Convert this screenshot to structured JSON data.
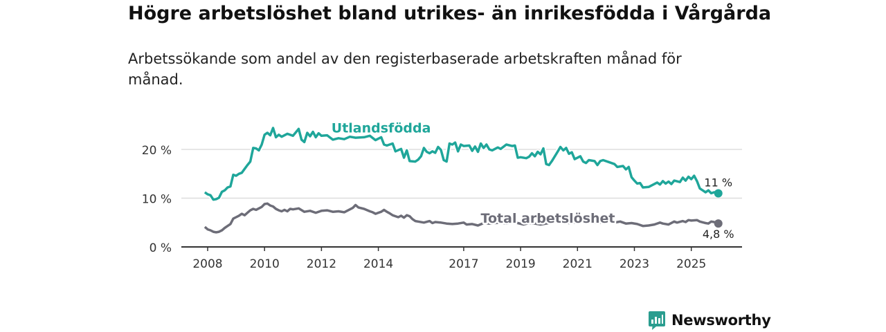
{
  "title": "Högre arbetslöshet bland utrikes- än inrikesfödda i Vårgårda",
  "subtitle": "Arbetssökande som andel av den registerbaserade arbetskraften månad för månad.",
  "brand": {
    "name": "Newsworthy",
    "icon": "bar-chart-speech-bubble-icon",
    "color": "#2a9d8f"
  },
  "chart_data": {
    "type": "line",
    "x_unit": "year",
    "ylim": [
      0,
      26
    ],
    "y_ticks": [
      0,
      10,
      20
    ],
    "y_tick_labels": [
      "0 %",
      "10 %",
      "20 %"
    ],
    "x_ticks": [
      2008,
      2010,
      2012,
      2014,
      2017,
      2019,
      2021,
      2023,
      2025
    ],
    "x_tick_labels": [
      "2008",
      "2010",
      "2012",
      "2014",
      "2017",
      "2019",
      "2021",
      "2023",
      "2025"
    ],
    "grid": true,
    "series": [
      {
        "name": "Utlandsfödda",
        "color": "#1fa69a",
        "end_label": "11 %",
        "points": [
          [
            2007.9,
            11.2
          ],
          [
            2008.0,
            10.8
          ],
          [
            2008.1,
            10.6
          ],
          [
            2008.2,
            9.7
          ],
          [
            2008.3,
            9.8
          ],
          [
            2008.4,
            10.1
          ],
          [
            2008.5,
            11.3
          ],
          [
            2008.6,
            11.6
          ],
          [
            2008.7,
            12.2
          ],
          [
            2008.8,
            12.4
          ],
          [
            2008.9,
            14.8
          ],
          [
            2009.0,
            14.6
          ],
          [
            2009.1,
            15.0
          ],
          [
            2009.2,
            15.2
          ],
          [
            2009.3,
            16.0
          ],
          [
            2009.4,
            16.8
          ],
          [
            2009.5,
            17.5
          ],
          [
            2009.6,
            20.3
          ],
          [
            2009.7,
            20.2
          ],
          [
            2009.8,
            19.8
          ],
          [
            2009.9,
            21.0
          ],
          [
            2010.0,
            23.0
          ],
          [
            2010.1,
            23.4
          ],
          [
            2010.2,
            22.9
          ],
          [
            2010.3,
            24.4
          ],
          [
            2010.4,
            22.5
          ],
          [
            2010.5,
            23.0
          ],
          [
            2010.6,
            22.6
          ],
          [
            2010.8,
            23.2
          ],
          [
            2011.0,
            22.8
          ],
          [
            2011.2,
            24.2
          ],
          [
            2011.3,
            22.0
          ],
          [
            2011.4,
            21.5
          ],
          [
            2011.5,
            23.4
          ],
          [
            2011.6,
            22.7
          ],
          [
            2011.7,
            23.6
          ],
          [
            2011.8,
            22.5
          ],
          [
            2011.9,
            23.3
          ],
          [
            2012.0,
            22.8
          ],
          [
            2012.2,
            22.9
          ],
          [
            2012.4,
            22.0
          ],
          [
            2012.6,
            22.3
          ],
          [
            2012.8,
            22.1
          ],
          [
            2013.0,
            22.6
          ],
          [
            2013.2,
            22.4
          ],
          [
            2013.5,
            22.5
          ],
          [
            2013.7,
            22.8
          ],
          [
            2013.9,
            21.9
          ],
          [
            2014.1,
            22.5
          ],
          [
            2014.2,
            21.0
          ],
          [
            2014.3,
            20.8
          ],
          [
            2014.5,
            21.2
          ],
          [
            2014.6,
            19.6
          ],
          [
            2014.8,
            20.1
          ],
          [
            2014.9,
            18.3
          ],
          [
            2015.0,
            19.8
          ],
          [
            2015.1,
            17.6
          ],
          [
            2015.3,
            17.5
          ],
          [
            2015.4,
            17.9
          ],
          [
            2015.5,
            18.6
          ],
          [
            2015.6,
            20.3
          ],
          [
            2015.7,
            19.5
          ],
          [
            2015.8,
            19.2
          ],
          [
            2015.9,
            19.6
          ],
          [
            2016.0,
            19.3
          ],
          [
            2016.1,
            20.5
          ],
          [
            2016.2,
            19.9
          ],
          [
            2016.3,
            17.8
          ],
          [
            2016.4,
            17.5
          ],
          [
            2016.5,
            21.2
          ],
          [
            2016.6,
            21.0
          ],
          [
            2016.7,
            21.4
          ],
          [
            2016.8,
            19.6
          ],
          [
            2016.9,
            21.0
          ],
          [
            2017.0,
            20.7
          ],
          [
            2017.2,
            20.8
          ],
          [
            2017.3,
            19.7
          ],
          [
            2017.4,
            20.6
          ],
          [
            2017.5,
            19.5
          ],
          [
            2017.6,
            21.2
          ],
          [
            2017.7,
            20.3
          ],
          [
            2017.8,
            21.0
          ],
          [
            2017.9,
            20.0
          ],
          [
            2018.0,
            19.8
          ],
          [
            2018.2,
            20.4
          ],
          [
            2018.3,
            20.1
          ],
          [
            2018.5,
            21.0
          ],
          [
            2018.7,
            20.7
          ],
          [
            2018.8,
            20.8
          ],
          [
            2018.9,
            18.3
          ],
          [
            2019.0,
            18.4
          ],
          [
            2019.2,
            18.2
          ],
          [
            2019.3,
            18.5
          ],
          [
            2019.4,
            19.2
          ],
          [
            2019.5,
            18.6
          ],
          [
            2019.6,
            19.5
          ],
          [
            2019.7,
            19.0
          ],
          [
            2019.8,
            20.2
          ],
          [
            2019.9,
            17.0
          ],
          [
            2020.0,
            16.8
          ],
          [
            2020.1,
            17.6
          ],
          [
            2020.3,
            19.5
          ],
          [
            2020.4,
            20.5
          ],
          [
            2020.5,
            19.8
          ],
          [
            2020.6,
            20.3
          ],
          [
            2020.7,
            19.1
          ],
          [
            2020.8,
            19.4
          ],
          [
            2020.9,
            18.0
          ],
          [
            2021.1,
            18.6
          ],
          [
            2021.2,
            17.5
          ],
          [
            2021.3,
            17.2
          ],
          [
            2021.4,
            17.8
          ],
          [
            2021.6,
            17.6
          ],
          [
            2021.7,
            16.8
          ],
          [
            2021.8,
            17.6
          ],
          [
            2021.9,
            17.8
          ],
          [
            2022.1,
            17.4
          ],
          [
            2022.3,
            17.0
          ],
          [
            2022.4,
            16.4
          ],
          [
            2022.6,
            16.6
          ],
          [
            2022.7,
            15.9
          ],
          [
            2022.8,
            16.4
          ],
          [
            2022.9,
            14.3
          ],
          [
            2023.0,
            13.6
          ],
          [
            2023.1,
            13.0
          ],
          [
            2023.2,
            13.1
          ],
          [
            2023.3,
            12.2
          ],
          [
            2023.5,
            12.3
          ],
          [
            2023.6,
            12.6
          ],
          [
            2023.8,
            13.2
          ],
          [
            2023.9,
            12.8
          ],
          [
            2024.0,
            13.5
          ],
          [
            2024.1,
            13.0
          ],
          [
            2024.2,
            13.4
          ],
          [
            2024.3,
            12.9
          ],
          [
            2024.4,
            13.6
          ],
          [
            2024.6,
            13.3
          ],
          [
            2024.7,
            14.2
          ],
          [
            2024.8,
            13.6
          ],
          [
            2024.9,
            14.4
          ],
          [
            2025.0,
            13.9
          ],
          [
            2025.1,
            14.6
          ],
          [
            2025.2,
            13.5
          ],
          [
            2025.3,
            12.0
          ],
          [
            2025.5,
            11.2
          ],
          [
            2025.6,
            11.6
          ],
          [
            2025.7,
            11.0
          ],
          [
            2025.8,
            11.2
          ],
          [
            2025.95,
            11.0
          ]
        ]
      },
      {
        "name": "Total arbetslöshet",
        "color": "#6d6d78",
        "end_label": "4,8 %",
        "points": [
          [
            2007.9,
            4.1
          ],
          [
            2008.0,
            3.6
          ],
          [
            2008.1,
            3.4
          ],
          [
            2008.2,
            3.1
          ],
          [
            2008.3,
            3.0
          ],
          [
            2008.4,
            3.1
          ],
          [
            2008.5,
            3.4
          ],
          [
            2008.6,
            3.9
          ],
          [
            2008.7,
            4.3
          ],
          [
            2008.8,
            4.7
          ],
          [
            2008.9,
            5.8
          ],
          [
            2009.0,
            6.1
          ],
          [
            2009.1,
            6.4
          ],
          [
            2009.2,
            6.8
          ],
          [
            2009.3,
            6.5
          ],
          [
            2009.4,
            7.0
          ],
          [
            2009.5,
            7.5
          ],
          [
            2009.6,
            7.8
          ],
          [
            2009.7,
            7.6
          ],
          [
            2009.8,
            7.9
          ],
          [
            2009.9,
            8.2
          ],
          [
            2010.0,
            8.8
          ],
          [
            2010.1,
            8.9
          ],
          [
            2010.2,
            8.5
          ],
          [
            2010.3,
            8.3
          ],
          [
            2010.4,
            7.8
          ],
          [
            2010.5,
            7.5
          ],
          [
            2010.6,
            7.3
          ],
          [
            2010.7,
            7.6
          ],
          [
            2010.8,
            7.3
          ],
          [
            2010.9,
            7.8
          ],
          [
            2011.0,
            7.7
          ],
          [
            2011.2,
            7.9
          ],
          [
            2011.4,
            7.2
          ],
          [
            2011.6,
            7.4
          ],
          [
            2011.8,
            7.0
          ],
          [
            2012.0,
            7.4
          ],
          [
            2012.2,
            7.5
          ],
          [
            2012.4,
            7.2
          ],
          [
            2012.6,
            7.3
          ],
          [
            2012.8,
            7.1
          ],
          [
            2013.0,
            7.7
          ],
          [
            2013.1,
            8.0
          ],
          [
            2013.2,
            8.6
          ],
          [
            2013.3,
            8.1
          ],
          [
            2013.5,
            7.8
          ],
          [
            2013.7,
            7.3
          ],
          [
            2013.8,
            7.1
          ],
          [
            2013.9,
            6.8
          ],
          [
            2014.0,
            7.0
          ],
          [
            2014.1,
            7.2
          ],
          [
            2014.2,
            7.6
          ],
          [
            2014.3,
            7.2
          ],
          [
            2014.4,
            6.9
          ],
          [
            2014.5,
            6.5
          ],
          [
            2014.6,
            6.3
          ],
          [
            2014.7,
            6.1
          ],
          [
            2014.8,
            6.4
          ],
          [
            2014.9,
            6.0
          ],
          [
            2015.0,
            6.5
          ],
          [
            2015.1,
            6.3
          ],
          [
            2015.2,
            5.7
          ],
          [
            2015.3,
            5.3
          ],
          [
            2015.4,
            5.2
          ],
          [
            2015.6,
            5.0
          ],
          [
            2015.8,
            5.3
          ],
          [
            2015.9,
            4.9
          ],
          [
            2016.0,
            5.1
          ],
          [
            2016.2,
            5.0
          ],
          [
            2016.4,
            4.8
          ],
          [
            2016.6,
            4.7
          ],
          [
            2016.8,
            4.8
          ],
          [
            2017.0,
            5.0
          ],
          [
            2017.1,
            4.6
          ],
          [
            2017.3,
            4.7
          ],
          [
            2017.5,
            4.4
          ],
          [
            2017.7,
            4.9
          ],
          [
            2017.9,
            4.8
          ],
          [
            2018.1,
            4.9
          ],
          [
            2018.3,
            5.0
          ],
          [
            2018.5,
            4.8
          ],
          [
            2018.7,
            5.1
          ],
          [
            2018.9,
            4.9
          ],
          [
            2019.1,
            4.6
          ],
          [
            2019.3,
            4.9
          ],
          [
            2019.5,
            4.8
          ],
          [
            2019.7,
            4.6
          ],
          [
            2019.9,
            4.8
          ],
          [
            2020.1,
            5.0
          ],
          [
            2020.3,
            5.2
          ],
          [
            2020.5,
            5.1
          ],
          [
            2020.7,
            4.9
          ],
          [
            2020.9,
            5.0
          ],
          [
            2021.1,
            5.3
          ],
          [
            2021.3,
            5.1
          ],
          [
            2021.5,
            5.0
          ],
          [
            2021.7,
            4.9
          ],
          [
            2021.9,
            5.1
          ],
          [
            2022.1,
            5.3
          ],
          [
            2022.3,
            5.0
          ],
          [
            2022.5,
            5.2
          ],
          [
            2022.7,
            4.8
          ],
          [
            2022.9,
            4.9
          ],
          [
            2023.1,
            4.7
          ],
          [
            2023.3,
            4.3
          ],
          [
            2023.5,
            4.4
          ],
          [
            2023.7,
            4.6
          ],
          [
            2023.9,
            5.0
          ],
          [
            2024.0,
            4.8
          ],
          [
            2024.2,
            4.6
          ],
          [
            2024.4,
            5.2
          ],
          [
            2024.5,
            5.0
          ],
          [
            2024.7,
            5.3
          ],
          [
            2024.8,
            5.1
          ],
          [
            2024.9,
            5.5
          ],
          [
            2025.0,
            5.4
          ],
          [
            2025.2,
            5.5
          ],
          [
            2025.3,
            5.2
          ],
          [
            2025.5,
            4.9
          ],
          [
            2025.6,
            4.8
          ],
          [
            2025.7,
            5.2
          ],
          [
            2025.8,
            5.1
          ],
          [
            2025.95,
            4.8
          ]
        ]
      }
    ]
  }
}
